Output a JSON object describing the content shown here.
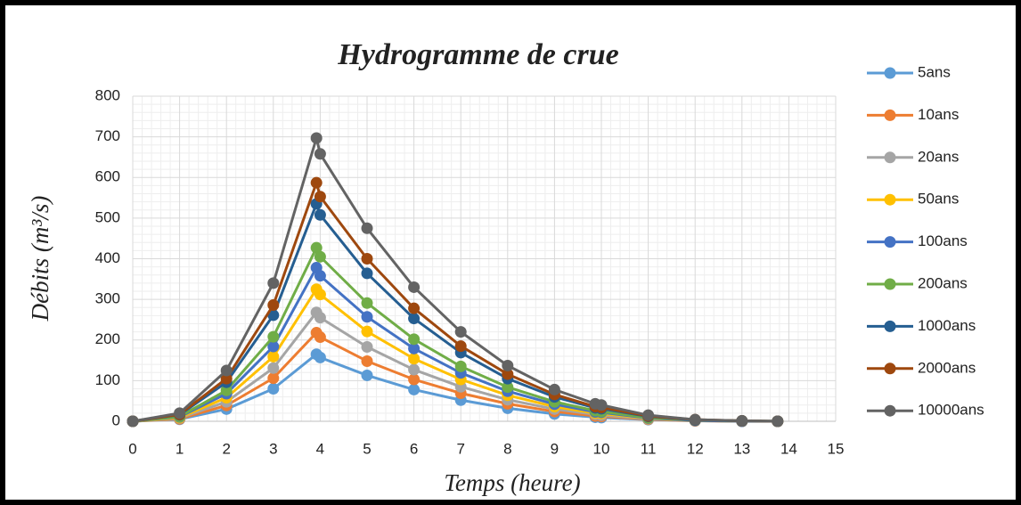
{
  "chart_data": {
    "type": "line",
    "title": "Hydrogramme de crue",
    "x_label": "Temps (heure)",
    "y_label": "Débits (m³/s)",
    "x": [
      0,
      1,
      2,
      3,
      3.92,
      4,
      5,
      6,
      7,
      8,
      9,
      9.87,
      10,
      11,
      12,
      13,
      13.76
    ],
    "series": [
      {
        "name": "5ans",
        "color": "#5B9BD5",
        "values": [
          0,
          5,
          30,
          80,
          165,
          157,
          113,
          78,
          52,
          32,
          18,
          10,
          9,
          4,
          1,
          0,
          0
        ]
      },
      {
        "name": "10ans",
        "color": "#ED7D31",
        "values": [
          0,
          6,
          39,
          106,
          218,
          207,
          148,
          103,
          69,
          43,
          24,
          13,
          12,
          5,
          1,
          0,
          0
        ]
      },
      {
        "name": "20ans",
        "color": "#A5A5A5",
        "values": [
          0,
          8,
          48,
          131,
          268,
          255,
          183,
          127,
          85,
          53,
          30,
          17,
          15,
          6,
          2,
          0,
          0
        ]
      },
      {
        "name": "50ans",
        "color": "#FFC000",
        "values": [
          0,
          9,
          58,
          159,
          325,
          312,
          221,
          154,
          103,
          64,
          36,
          20,
          19,
          7,
          2,
          0,
          0
        ]
      },
      {
        "name": "100ans",
        "color": "#4472C4",
        "values": [
          0,
          11,
          68,
          184,
          378,
          358,
          257,
          179,
          119,
          74,
          42,
          23,
          22,
          8,
          2,
          0,
          0
        ]
      },
      {
        "name": "200ans",
        "color": "#70AD47",
        "values": [
          0,
          12,
          76,
          208,
          427,
          405,
          291,
          202,
          135,
          84,
          48,
          26,
          24,
          9,
          3,
          1,
          0
        ]
      },
      {
        "name": "1000ans",
        "color": "#255E91",
        "values": [
          0,
          16,
          96,
          261,
          535,
          508,
          364,
          253,
          169,
          105,
          60,
          33,
          31,
          12,
          3,
          1,
          0
        ]
      },
      {
        "name": "2000ans",
        "color": "#9E480E",
        "values": [
          0,
          17,
          105,
          286,
          587,
          553,
          400,
          278,
          185,
          116,
          66,
          36,
          34,
          13,
          4,
          1,
          0
        ]
      },
      {
        "name": "10000ans",
        "color": "#636363",
        "values": [
          0,
          20,
          125,
          340,
          697,
          658,
          475,
          330,
          220,
          137,
          78,
          43,
          40,
          15,
          4,
          1,
          0
        ]
      }
    ],
    "xlim": [
      0,
      15
    ],
    "xticks": [
      0,
      1,
      2,
      3,
      4,
      5,
      6,
      7,
      8,
      9,
      10,
      11,
      12,
      13,
      14,
      15
    ],
    "ylim": [
      0,
      800
    ],
    "yticks": [
      0,
      100,
      200,
      300,
      400,
      500,
      600,
      700,
      800
    ],
    "grid": true,
    "legend": "right"
  }
}
